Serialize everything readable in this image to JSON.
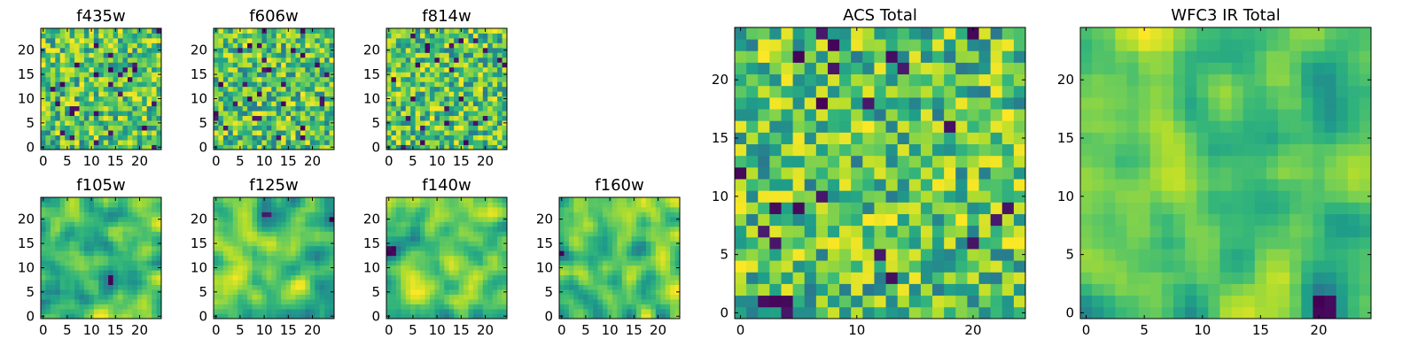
{
  "chart_data": {
    "type": "heatmap",
    "colormap": "viridis",
    "panels": [
      {
        "title": "f435w",
        "grid_size": 25,
        "xlim": [
          -0.5,
          24.5
        ],
        "ylim": [
          -0.5,
          24.5
        ],
        "xticks": [
          0,
          5,
          10,
          15,
          20
        ],
        "yticks": [
          0,
          5,
          10,
          15,
          20
        ],
        "texture": "noise",
        "seed": 11
      },
      {
        "title": "f606w",
        "grid_size": 25,
        "xlim": [
          -0.5,
          24.5
        ],
        "ylim": [
          -0.5,
          24.5
        ],
        "xticks": [
          0,
          5,
          10,
          15,
          20
        ],
        "yticks": [
          0,
          5,
          10,
          15,
          20
        ],
        "texture": "noise",
        "seed": 23
      },
      {
        "title": "f814w",
        "grid_size": 25,
        "xlim": [
          -0.5,
          24.5
        ],
        "ylim": [
          -0.5,
          24.5
        ],
        "xticks": [
          0,
          5,
          10,
          15,
          20
        ],
        "yticks": [
          0,
          5,
          10,
          15,
          20
        ],
        "texture": "noise",
        "seed": 37
      },
      {
        "title": "f105w",
        "grid_size": 25,
        "xlim": [
          -0.5,
          24.5
        ],
        "ylim": [
          -0.5,
          24.5
        ],
        "xticks": [
          0,
          5,
          10,
          15,
          20
        ],
        "yticks": [
          0,
          5,
          10,
          15,
          20
        ],
        "texture": "smooth",
        "seed": 41
      },
      {
        "title": "f125w",
        "grid_size": 25,
        "xlim": [
          -0.5,
          24.5
        ],
        "ylim": [
          -0.5,
          24.5
        ],
        "xticks": [
          0,
          5,
          10,
          15,
          20
        ],
        "yticks": [
          0,
          5,
          10,
          15,
          20
        ],
        "texture": "smooth",
        "seed": 53
      },
      {
        "title": "f140w",
        "grid_size": 25,
        "xlim": [
          -0.5,
          24.5
        ],
        "ylim": [
          -0.5,
          24.5
        ],
        "xticks": [
          0,
          5,
          10,
          15,
          20
        ],
        "yticks": [
          0,
          5,
          10,
          15,
          20
        ],
        "texture": "smooth",
        "seed": 67
      },
      {
        "title": "f160w",
        "grid_size": 25,
        "xlim": [
          -0.5,
          24.5
        ],
        "ylim": [
          -0.5,
          24.5
        ],
        "xticks": [
          0,
          5,
          10,
          15,
          20
        ],
        "yticks": [
          0,
          5,
          10,
          15,
          20
        ],
        "texture": "smooth",
        "seed": 79
      },
      {
        "title": "ACS Total",
        "grid_size": 25,
        "xlim": [
          -0.5,
          24.5
        ],
        "ylim": [
          -0.5,
          24.5
        ],
        "xticks": [
          0,
          10,
          20
        ],
        "yticks": [
          0,
          5,
          10,
          15,
          20
        ],
        "texture": "noise",
        "seed": 97
      },
      {
        "title": "WFC3 IR Total",
        "grid_size": 25,
        "xlim": [
          -0.5,
          24.5
        ],
        "ylim": [
          -0.5,
          24.5
        ],
        "xticks": [
          0,
          5,
          10,
          15,
          20
        ],
        "yticks": [
          0,
          5,
          10,
          15,
          20
        ],
        "texture": "smooth",
        "seed": 131
      }
    ]
  }
}
